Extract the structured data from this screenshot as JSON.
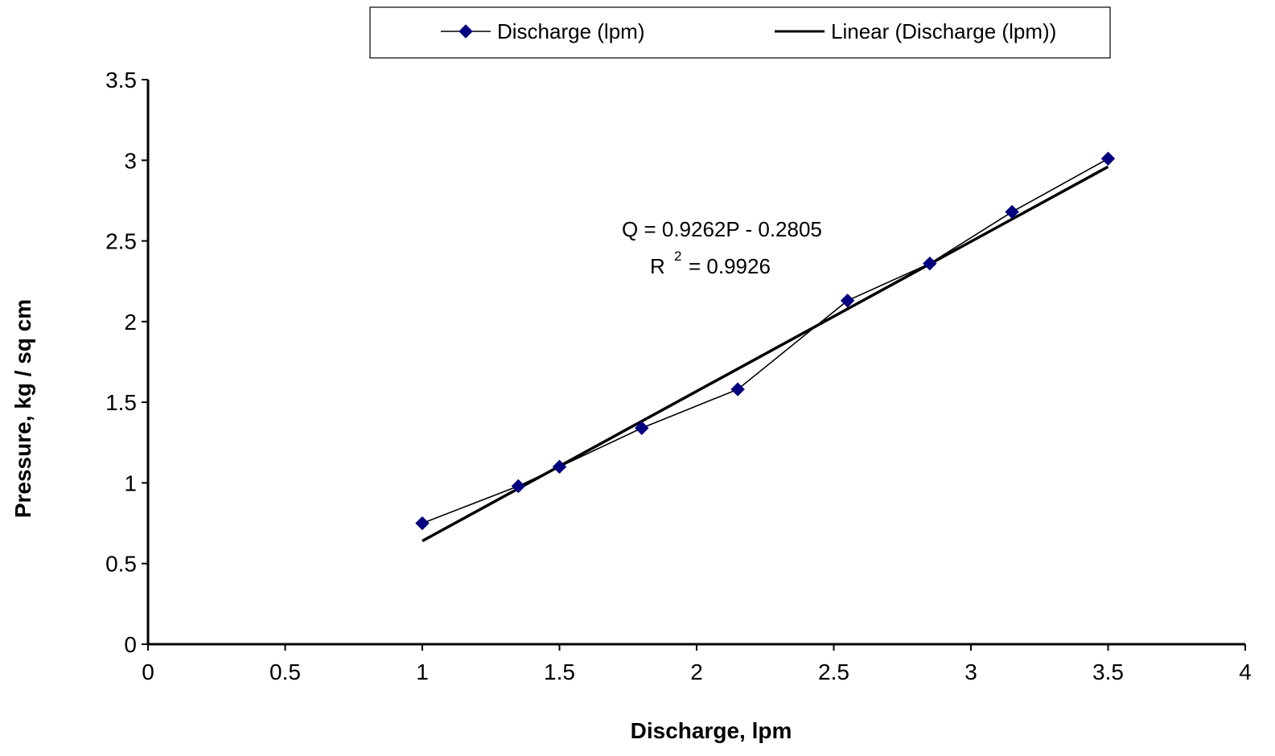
{
  "chart_data": {
    "type": "scatter",
    "xlabel": "Discharge, lpm",
    "ylabel": "Pressure, kg / sq cm",
    "xlim": [
      0,
      4
    ],
    "ylim": [
      0,
      3.5
    ],
    "x_ticks": [
      "0",
      "0.5",
      "1",
      "1.5",
      "2",
      "2.5",
      "3",
      "3.5",
      "4"
    ],
    "y_ticks": [
      "0",
      "0.5",
      "1",
      "1.5",
      "2",
      "2.5",
      "3",
      "3.5"
    ],
    "grid": false,
    "legend_position": "top",
    "series": [
      {
        "name": "Discharge (lpm)",
        "color": "#000080",
        "marker": "diamond",
        "x": [
          1.0,
          1.35,
          1.5,
          1.8,
          2.15,
          2.55,
          2.85,
          3.15,
          3.5
        ],
        "y": [
          0.75,
          0.98,
          1.1,
          1.34,
          1.58,
          2.13,
          2.36,
          2.68,
          3.01
        ]
      }
    ],
    "trendline": {
      "name": "Linear (Discharge (lpm))",
      "color": "#000000",
      "x": [
        1.0,
        3.5
      ],
      "y": [
        0.64,
        2.96
      ]
    },
    "annotations": {
      "equation": "Q = 0.9262P - 0.2805",
      "r2_base": "R",
      "r2_sup": "2",
      "r2_value": "= 0.9926"
    }
  }
}
